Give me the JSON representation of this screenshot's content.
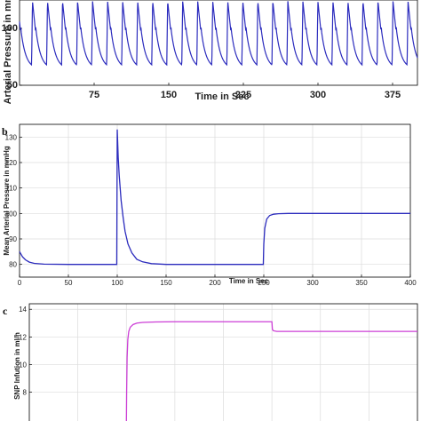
{
  "chart_data": [
    {
      "id": "a",
      "panel_label": "",
      "type": "line",
      "xlabel": "Time in Sec",
      "ylabel": "Arterial Pressure in mmHg",
      "xticks": [
        75,
        150,
        225,
        300,
        375
      ],
      "yticks": [
        50,
        100
      ],
      "xlim": [
        0,
        400
      ],
      "ylim": [
        50,
        125
      ],
      "series": [
        {
          "color": "#2b2bbd",
          "waveform": "pulsatile",
          "peak": 124,
          "trough": 68,
          "period": 15.1
        }
      ]
    },
    {
      "id": "b",
      "panel_label": "b",
      "type": "line",
      "xlabel": "Time in Sec",
      "ylabel": "Mean Arterial Pressure in mmHg",
      "xticks": [
        0,
        50,
        100,
        150,
        200,
        250,
        300,
        350,
        400
      ],
      "yticks": [
        80,
        90,
        100,
        110,
        120,
        130
      ],
      "xlim": [
        0,
        400
      ],
      "ylim": [
        75,
        135
      ],
      "grid": true,
      "series": [
        {
          "color": "#2b2bbd",
          "x": [
            0,
            3,
            6,
            10,
            15,
            25,
            50,
            99.5,
            100,
            101,
            102,
            104,
            106,
            108,
            111,
            115,
            120,
            126,
            135,
            150,
            200,
            249.5,
            250,
            251,
            253,
            256,
            260,
            265,
            275,
            300,
            400
          ],
          "y": [
            85,
            83,
            81.8,
            80.9,
            80.4,
            80.1,
            80,
            80,
            133,
            122,
            115,
            105,
            98.5,
            93,
            88,
            84.5,
            82,
            81,
            80.3,
            80,
            80,
            80,
            88,
            94.2,
            97.8,
            99.2,
            99.7,
            99.9,
            100,
            100,
            100
          ]
        }
      ]
    },
    {
      "id": "c",
      "panel_label": "c",
      "type": "line",
      "xlabel": "",
      "ylabel": "SNP Infution in ml/h",
      "xticks": [],
      "yticks": [
        8,
        10,
        12,
        14
      ],
      "xlim": [
        0,
        400
      ],
      "ylim": [
        5.4,
        14.4
      ],
      "grid": true,
      "series": [
        {
          "color": "#cc3fd6",
          "x": [
            100,
            100.3,
            100.8,
            101.5,
            102.5,
            104,
            107,
            111,
            117,
            130,
            150,
            250,
            250.5,
            251.5,
            255,
            400
          ],
          "y": [
            5.3,
            8,
            10.5,
            11.8,
            12.4,
            12.7,
            12.9,
            13,
            13.05,
            13.08,
            13.1,
            13.1,
            12.55,
            12.45,
            12.4,
            12.4
          ]
        }
      ]
    }
  ]
}
